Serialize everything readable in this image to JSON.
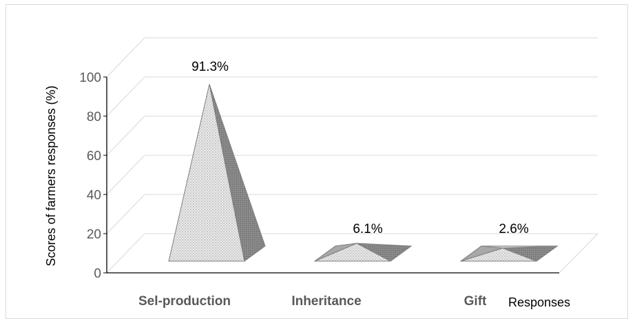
{
  "chart_data": {
    "type": "bar",
    "style": "3d-pyramid",
    "categories": [
      "Sel-production",
      "Inheritance",
      "Gift"
    ],
    "values": [
      91.3,
      6.1,
      2.6
    ],
    "data_labels": [
      "91.3%",
      "6.1%",
      "2.6%"
    ],
    "title": "",
    "xlabel": "Responses",
    "ylabel": "Scores of farmers responses (%)",
    "ylim": [
      0,
      100
    ],
    "yticks": [
      "0",
      "20",
      "40",
      "60",
      "80",
      "100"
    ],
    "grid": true,
    "legend": "none"
  }
}
